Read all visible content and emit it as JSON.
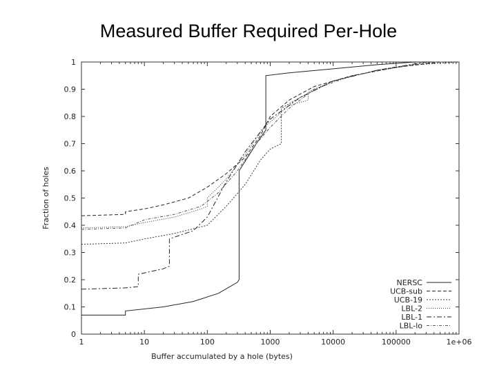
{
  "slide": {
    "title": "Measured Buffer Required Per-Hole"
  },
  "chart_data": {
    "type": "line",
    "title": "",
    "xlabel": "Buffer accumulated by a hole (bytes)",
    "ylabel": "Fraction of holes",
    "xscale": "log",
    "xlim": [
      1,
      1000000
    ],
    "ylim": [
      0,
      1
    ],
    "xticks": [
      1,
      10,
      100,
      1000,
      10000,
      100000,
      1000000
    ],
    "xtick_labels": [
      "1",
      "10",
      "100",
      "1000",
      "10000",
      "100000",
      "1e+06"
    ],
    "yticks": [
      0,
      0.1,
      0.2,
      0.3,
      0.4,
      0.5,
      0.6,
      0.7,
      0.8,
      0.9,
      1
    ],
    "ytick_labels": [
      "0",
      "0.1",
      "0.2",
      "0.3",
      "0.4",
      "0.5",
      "0.6",
      "0.7",
      "0.8",
      "0.9",
      "1"
    ],
    "grid": false,
    "legend_position": "bottom-right",
    "series": [
      {
        "name": "NERSC",
        "color": "#222222",
        "dash": "none",
        "points": [
          [
            1,
            0.07
          ],
          [
            5,
            0.07
          ],
          [
            5,
            0.085
          ],
          [
            20,
            0.1
          ],
          [
            60,
            0.12
          ],
          [
            150,
            0.15
          ],
          [
            300,
            0.19
          ],
          [
            320,
            0.2
          ],
          [
            320,
            0.6
          ],
          [
            600,
            0.7
          ],
          [
            850,
            0.75
          ],
          [
            850,
            0.95
          ],
          [
            2000,
            0.96
          ],
          [
            10000,
            0.975
          ],
          [
            50000,
            0.99
          ],
          [
            200000,
            1.0
          ],
          [
            1000000,
            1.0
          ]
        ]
      },
      {
        "name": "UCB-sub",
        "color": "#222222",
        "dash": "5,3",
        "points": [
          [
            1,
            0.435
          ],
          [
            5,
            0.44
          ],
          [
            5,
            0.45
          ],
          [
            10,
            0.46
          ],
          [
            20,
            0.475
          ],
          [
            50,
            0.5
          ],
          [
            100,
            0.54
          ],
          [
            200,
            0.59
          ],
          [
            400,
            0.65
          ],
          [
            700,
            0.73
          ],
          [
            1000,
            0.8
          ],
          [
            2000,
            0.86
          ],
          [
            5000,
            0.91
          ],
          [
            20000,
            0.95
          ],
          [
            100000,
            0.98
          ],
          [
            500000,
            1.0
          ],
          [
            1000000,
            1.0
          ]
        ]
      },
      {
        "name": "UCB-19",
        "color": "#333333",
        "dash": "2,2",
        "points": [
          [
            1,
            0.33
          ],
          [
            5,
            0.335
          ],
          [
            10,
            0.35
          ],
          [
            30,
            0.37
          ],
          [
            100,
            0.4
          ],
          [
            200,
            0.47
          ],
          [
            400,
            0.55
          ],
          [
            700,
            0.64
          ],
          [
            1000,
            0.68
          ],
          [
            1500,
            0.7
          ],
          [
            1500,
            0.83
          ],
          [
            3000,
            0.87
          ],
          [
            10000,
            0.93
          ],
          [
            50000,
            0.97
          ],
          [
            200000,
            0.99
          ],
          [
            1000000,
            1.0
          ]
        ]
      },
      {
        "name": "LBL-2",
        "color": "#333333",
        "dash": "1,2",
        "points": [
          [
            1,
            0.39
          ],
          [
            5,
            0.395
          ],
          [
            10,
            0.41
          ],
          [
            30,
            0.43
          ],
          [
            80,
            0.46
          ],
          [
            100,
            0.47
          ],
          [
            100,
            0.5
          ],
          [
            200,
            0.57
          ],
          [
            400,
            0.66
          ],
          [
            800,
            0.76
          ],
          [
            2000,
            0.84
          ],
          [
            4000,
            0.86
          ],
          [
            4000,
            0.89
          ],
          [
            10000,
            0.93
          ],
          [
            50000,
            0.97
          ],
          [
            300000,
            1.0
          ],
          [
            1000000,
            1.0
          ]
        ]
      },
      {
        "name": "LBL-1",
        "color": "#222222",
        "dash": "7,3,2,3",
        "points": [
          [
            1,
            0.165
          ],
          [
            5,
            0.17
          ],
          [
            8,
            0.175
          ],
          [
            8,
            0.22
          ],
          [
            20,
            0.24
          ],
          [
            25,
            0.25
          ],
          [
            25,
            0.35
          ],
          [
            60,
            0.38
          ],
          [
            100,
            0.43
          ],
          [
            200,
            0.56
          ],
          [
            400,
            0.67
          ],
          [
            1000,
            0.79
          ],
          [
            3000,
            0.87
          ],
          [
            10000,
            0.93
          ],
          [
            50000,
            0.97
          ],
          [
            300000,
            1.0
          ],
          [
            1000000,
            1.0
          ]
        ]
      },
      {
        "name": "LBL-lo",
        "color": "#555555",
        "dash": "4,2,1,2",
        "points": [
          [
            1,
            0.385
          ],
          [
            5,
            0.39
          ],
          [
            10,
            0.42
          ],
          [
            30,
            0.44
          ],
          [
            80,
            0.47
          ],
          [
            150,
            0.52
          ],
          [
            300,
            0.6
          ],
          [
            600,
            0.7
          ],
          [
            1000,
            0.76
          ],
          [
            2000,
            0.83
          ],
          [
            5000,
            0.9
          ],
          [
            20000,
            0.95
          ],
          [
            100000,
            0.98
          ],
          [
            400000,
            1.0
          ],
          [
            1000000,
            1.0
          ]
        ]
      }
    ]
  }
}
